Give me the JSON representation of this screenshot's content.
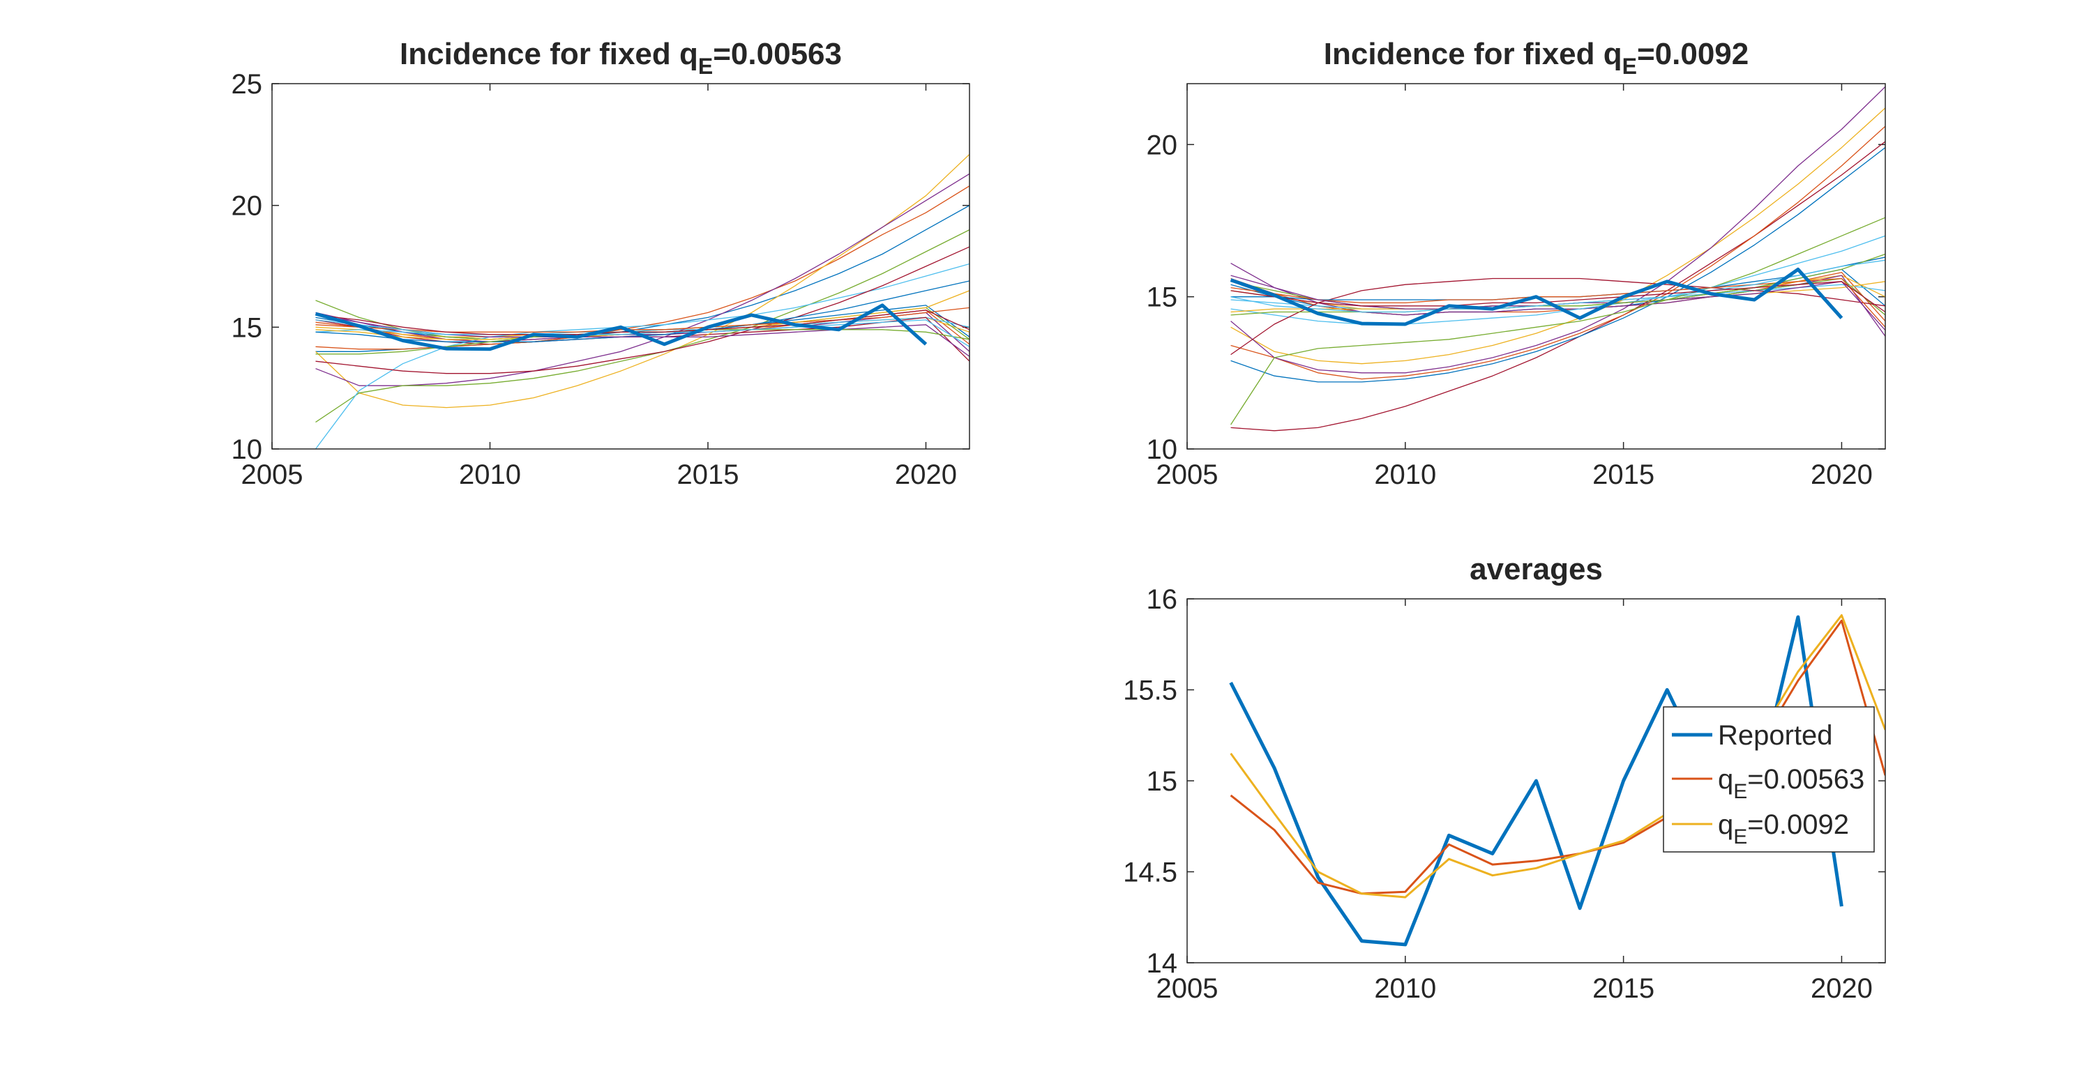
{
  "colors": {
    "reported": "#0072BD",
    "qe1": "#D95319",
    "qe2": "#EDB120",
    "axis": "#262626",
    "palette": [
      "#0072BD",
      "#D95319",
      "#EDB120",
      "#7E2F8E",
      "#77AC30",
      "#4DBEEE",
      "#A2142F"
    ]
  },
  "chart_data": [
    {
      "type": "line",
      "title_prefix": "Incidence for fixed q",
      "title_sub": "E",
      "title_suffix": "=0.00563",
      "xlim": [
        2005,
        2021
      ],
      "ylim": [
        10,
        25
      ],
      "xticks": [
        "2005",
        "2010",
        "2015",
        "2020"
      ],
      "yticks": [
        "10",
        "15",
        "20",
        "25"
      ],
      "x": [
        2006,
        2007,
        2008,
        2009,
        2010,
        2011,
        2012,
        2013,
        2014,
        2015,
        2016,
        2017,
        2018,
        2019,
        2020,
        2021
      ],
      "reported": {
        "name": "Reported",
        "x": [
          2006,
          2007,
          2008,
          2009,
          2010,
          2011,
          2012,
          2013,
          2014,
          2015,
          2016,
          2017,
          2018,
          2019,
          2020
        ],
        "values": [
          15.55,
          15.05,
          14.45,
          14.12,
          14.1,
          14.7,
          14.6,
          15.0,
          14.3,
          15.0,
          15.5,
          15.1,
          14.9,
          15.9,
          14.3
        ]
      },
      "series": [
        {
          "values": [
            15.4,
            15.1,
            14.8,
            14.6,
            14.5,
            14.6,
            14.6,
            14.7,
            14.8,
            14.9,
            15.1,
            15.3,
            15.5,
            15.7,
            15.9,
            14.6
          ]
        },
        {
          "values": [
            15.2,
            15.0,
            14.7,
            14.5,
            14.4,
            14.5,
            14.6,
            14.6,
            14.7,
            14.8,
            14.9,
            15.1,
            15.3,
            15.5,
            15.7,
            14.3
          ]
        },
        {
          "values": [
            15.0,
            14.9,
            14.7,
            14.6,
            14.6,
            14.7,
            14.7,
            14.8,
            14.8,
            14.9,
            15.0,
            15.1,
            15.2,
            15.3,
            15.4,
            14.8
          ]
        },
        {
          "values": [
            15.6,
            15.2,
            14.8,
            14.5,
            14.4,
            14.5,
            14.6,
            14.7,
            14.7,
            14.8,
            14.9,
            15.0,
            15.2,
            15.4,
            15.6,
            14.0
          ]
        },
        {
          "values": [
            16.1,
            15.4,
            14.9,
            14.6,
            14.5,
            14.6,
            14.7,
            14.8,
            14.9,
            15.0,
            15.1,
            15.2,
            15.4,
            15.6,
            15.8,
            14.5
          ]
        },
        {
          "values": [
            14.8,
            14.9,
            14.8,
            14.7,
            14.7,
            14.7,
            14.8,
            14.8,
            14.9,
            14.9,
            15.0,
            15.1,
            15.2,
            15.3,
            15.4,
            15.0
          ]
        },
        {
          "values": [
            15.3,
            15.0,
            14.6,
            14.4,
            14.3,
            14.4,
            14.5,
            14.6,
            14.6,
            14.7,
            14.8,
            14.9,
            15.0,
            15.2,
            15.4,
            13.6
          ]
        },
        {
          "values": [
            14.0,
            14.0,
            14.1,
            14.2,
            14.3,
            14.4,
            14.6,
            14.8,
            15.1,
            15.4,
            15.9,
            16.5,
            17.2,
            18.0,
            19.0,
            20.0
          ]
        },
        {
          "values": [
            14.2,
            14.1,
            14.1,
            14.2,
            14.3,
            14.4,
            14.6,
            14.9,
            15.2,
            15.6,
            16.2,
            16.9,
            17.8,
            18.8,
            19.7,
            20.8
          ]
        },
        {
          "values": [
            14.0,
            12.3,
            11.8,
            11.7,
            11.8,
            12.1,
            12.6,
            13.2,
            13.9,
            14.7,
            15.6,
            16.7,
            17.9,
            19.1,
            20.4,
            22.1
          ]
        },
        {
          "values": [
            13.3,
            12.6,
            12.6,
            12.7,
            12.9,
            13.2,
            13.6,
            14.0,
            14.6,
            15.3,
            16.1,
            17.0,
            18.0,
            19.1,
            20.2,
            21.3
          ]
        },
        {
          "values": [
            11.1,
            12.3,
            12.6,
            12.6,
            12.7,
            12.9,
            13.2,
            13.6,
            14.0,
            14.5,
            15.0,
            15.7,
            16.4,
            17.2,
            18.1,
            19.0
          ]
        },
        {
          "values": [
            10.0,
            12.4,
            13.5,
            14.2,
            14.6,
            14.8,
            14.9,
            15.0,
            15.1,
            15.3,
            15.5,
            15.8,
            16.2,
            16.6,
            17.1,
            17.6
          ]
        },
        {
          "values": [
            13.6,
            13.4,
            13.2,
            13.1,
            13.1,
            13.2,
            13.4,
            13.7,
            14.0,
            14.4,
            14.9,
            15.4,
            16.0,
            16.7,
            17.5,
            18.3
          ]
        },
        {
          "values": [
            14.8,
            14.7,
            14.5,
            14.4,
            14.4,
            14.4,
            14.5,
            14.6,
            14.7,
            14.9,
            15.1,
            15.4,
            15.7,
            16.1,
            16.5,
            16.9
          ]
        },
        {
          "values": [
            15.1,
            15.0,
            14.9,
            14.8,
            14.8,
            14.8,
            14.8,
            14.9,
            14.9,
            15.0,
            15.1,
            15.2,
            15.3,
            15.4,
            15.6,
            15.8
          ]
        },
        {
          "values": [
            14.9,
            14.8,
            14.6,
            14.5,
            14.5,
            14.6,
            14.6,
            14.7,
            14.8,
            14.9,
            15.0,
            15.2,
            15.4,
            15.6,
            15.8,
            16.5
          ]
        },
        {
          "values": [
            15.5,
            15.2,
            14.9,
            14.7,
            14.6,
            14.6,
            14.6,
            14.6,
            14.6,
            14.6,
            14.7,
            14.8,
            14.9,
            15.0,
            15.1,
            13.8
          ]
        },
        {
          "values": [
            13.9,
            13.9,
            14.0,
            14.2,
            14.4,
            14.6,
            14.7,
            14.8,
            14.8,
            14.9,
            14.9,
            14.9,
            14.9,
            14.9,
            14.8,
            14.5
          ]
        },
        {
          "values": [
            15.3,
            15.1,
            14.9,
            14.7,
            14.7,
            14.7,
            14.7,
            14.7,
            14.8,
            14.8,
            14.9,
            15.0,
            15.1,
            15.2,
            15.3,
            14.2
          ]
        },
        {
          "values": [
            15.5,
            15.3,
            15.0,
            14.8,
            14.7,
            14.7,
            14.7,
            14.8,
            14.8,
            14.9,
            15.0,
            15.1,
            15.3,
            15.5,
            15.7,
            14.9
          ]
        }
      ]
    },
    {
      "type": "line",
      "title_prefix": "Incidence for fixed q",
      "title_sub": "E",
      "title_suffix": "=0.0092",
      "xlim": [
        2005,
        2021
      ],
      "ylim": [
        10,
        22
      ],
      "xticks": [
        "2005",
        "2010",
        "2015",
        "2020"
      ],
      "yticks": [
        "10",
        "15",
        "20"
      ],
      "x": [
        2006,
        2007,
        2008,
        2009,
        2010,
        2011,
        2012,
        2013,
        2014,
        2015,
        2016,
        2017,
        2018,
        2019,
        2020,
        2021
      ],
      "reported": {
        "name": "Reported",
        "x": [
          2006,
          2007,
          2008,
          2009,
          2010,
          2011,
          2012,
          2013,
          2014,
          2015,
          2016,
          2017,
          2018,
          2019,
          2020
        ],
        "values": [
          15.55,
          15.05,
          14.45,
          14.12,
          14.1,
          14.7,
          14.6,
          15.0,
          14.3,
          15.0,
          15.5,
          15.1,
          14.9,
          15.9,
          14.3
        ]
      },
      "series": [
        {
          "values": [
            15.4,
            15.0,
            14.7,
            14.5,
            14.4,
            14.5,
            14.5,
            14.6,
            14.6,
            14.7,
            14.9,
            15.1,
            15.3,
            15.6,
            15.9,
            14.7
          ]
        },
        {
          "values": [
            15.6,
            15.1,
            14.7,
            14.5,
            14.4,
            14.5,
            14.5,
            14.5,
            14.6,
            14.7,
            14.8,
            15.0,
            15.2,
            15.5,
            15.8,
            14.2
          ]
        },
        {
          "values": [
            15.2,
            15.0,
            14.8,
            14.6,
            14.6,
            14.6,
            14.7,
            14.7,
            14.8,
            14.9,
            15.0,
            15.1,
            15.3,
            15.5,
            15.7,
            15.0
          ]
        },
        {
          "values": [
            16.1,
            15.3,
            14.8,
            14.5,
            14.4,
            14.5,
            14.5,
            14.6,
            14.6,
            14.7,
            14.8,
            15.0,
            15.2,
            15.4,
            15.7,
            13.7
          ]
        },
        {
          "values": [
            15.5,
            15.2,
            14.9,
            14.7,
            14.6,
            14.6,
            14.6,
            14.7,
            14.7,
            14.8,
            14.9,
            15.0,
            15.2,
            15.4,
            15.6,
            14.4
          ]
        },
        {
          "values": [
            14.9,
            14.8,
            14.7,
            14.6,
            14.6,
            14.6,
            14.7,
            14.7,
            14.8,
            14.9,
            15.0,
            15.1,
            15.2,
            15.3,
            15.4,
            15.2
          ]
        },
        {
          "values": [
            10.7,
            10.6,
            10.7,
            11.0,
            11.4,
            11.9,
            12.4,
            13.0,
            13.7,
            14.4,
            15.2,
            16.1,
            17.0,
            18.0,
            19.0,
            20.1
          ]
        },
        {
          "values": [
            12.9,
            12.4,
            12.2,
            12.2,
            12.3,
            12.5,
            12.8,
            13.2,
            13.7,
            14.3,
            15.0,
            15.8,
            16.7,
            17.7,
            18.8,
            19.9
          ]
        },
        {
          "values": [
            13.4,
            13.0,
            12.5,
            12.3,
            12.4,
            12.6,
            12.9,
            13.3,
            13.8,
            14.4,
            15.1,
            16.0,
            17.0,
            18.1,
            19.3,
            20.6
          ]
        },
        {
          "values": [
            14.0,
            13.2,
            12.9,
            12.8,
            12.9,
            13.1,
            13.4,
            13.8,
            14.3,
            14.9,
            15.7,
            16.6,
            17.6,
            18.7,
            19.9,
            21.2
          ]
        },
        {
          "values": [
            14.2,
            13.0,
            12.6,
            12.5,
            12.5,
            12.7,
            13.0,
            13.4,
            13.9,
            14.6,
            15.5,
            16.6,
            17.9,
            19.3,
            20.5,
            21.9
          ]
        },
        {
          "values": [
            10.8,
            13.0,
            13.3,
            13.4,
            13.5,
            13.6,
            13.8,
            14.0,
            14.2,
            14.5,
            14.9,
            15.3,
            15.8,
            16.4,
            17.0,
            17.6
          ]
        },
        {
          "values": [
            14.6,
            14.4,
            14.2,
            14.1,
            14.1,
            14.2,
            14.3,
            14.4,
            14.6,
            14.8,
            15.0,
            15.3,
            15.7,
            16.1,
            16.5,
            17.0
          ]
        },
        {
          "values": [
            13.1,
            14.1,
            14.8,
            15.2,
            15.4,
            15.5,
            15.6,
            15.6,
            15.6,
            15.5,
            15.4,
            15.3,
            15.2,
            15.1,
            14.9,
            14.7
          ]
        },
        {
          "values": [
            15.0,
            15.0,
            14.9,
            14.9,
            14.9,
            14.9,
            14.9,
            15.0,
            15.0,
            15.1,
            15.2,
            15.3,
            15.5,
            15.7,
            16.0,
            16.3
          ]
        },
        {
          "values": [
            15.3,
            15.1,
            14.9,
            14.8,
            14.8,
            14.9,
            14.9,
            15.0,
            15.0,
            15.1,
            15.2,
            15.3,
            15.4,
            15.5,
            15.6,
            14.0
          ]
        },
        {
          "values": [
            14.5,
            14.6,
            14.6,
            14.6,
            14.6,
            14.6,
            14.7,
            14.7,
            14.8,
            14.8,
            14.9,
            15.0,
            15.1,
            15.2,
            15.3,
            15.5
          ]
        },
        {
          "values": [
            15.7,
            15.3,
            14.9,
            14.7,
            14.6,
            14.6,
            14.7,
            14.7,
            14.8,
            14.8,
            14.9,
            15.0,
            15.1,
            15.3,
            15.5,
            13.9
          ]
        },
        {
          "values": [
            14.4,
            14.5,
            14.5,
            14.5,
            14.5,
            14.6,
            14.6,
            14.7,
            14.7,
            14.8,
            14.9,
            15.1,
            15.3,
            15.6,
            15.9,
            16.4
          ]
        },
        {
          "values": [
            15.0,
            14.7,
            14.6,
            14.5,
            14.5,
            14.6,
            14.6,
            14.7,
            14.8,
            14.9,
            15.0,
            15.2,
            15.4,
            15.7,
            16.0,
            16.2
          ]
        },
        {
          "values": [
            15.2,
            15.0,
            14.8,
            14.7,
            14.7,
            14.7,
            14.8,
            14.8,
            14.9,
            15.0,
            15.1,
            15.2,
            15.3,
            15.4,
            15.5,
            14.5
          ]
        }
      ]
    },
    {
      "type": "line",
      "title": "averages",
      "xlim": [
        2005,
        2021
      ],
      "ylim": [
        14,
        16
      ],
      "xticks": [
        "2005",
        "2010",
        "2015",
        "2020"
      ],
      "yticks": [
        "14",
        "14.5",
        "15",
        "15.5",
        "16"
      ],
      "legend_position": "center-right",
      "series": [
        {
          "name": "Reported",
          "legend_label": "Reported",
          "x": [
            2006,
            2007,
            2008,
            2009,
            2010,
            2011,
            2012,
            2013,
            2014,
            2015,
            2016,
            2017,
            2018,
            2019,
            2020
          ],
          "values": [
            15.54,
            15.07,
            14.47,
            14.12,
            14.1,
            14.7,
            14.6,
            15.0,
            14.3,
            15.0,
            15.5,
            15.0,
            14.9,
            15.9,
            14.31
          ]
        },
        {
          "name": "q_E=0.00563",
          "legend_label": "q",
          "legend_sub": "E",
          "legend_suffix": "=0.00563",
          "x": [
            2006,
            2007,
            2008,
            2009,
            2010,
            2011,
            2012,
            2013,
            2014,
            2015,
            2016,
            2017,
            2018,
            2019,
            2020,
            2021
          ],
          "values": [
            14.92,
            14.73,
            14.44,
            14.38,
            14.39,
            14.65,
            14.54,
            14.56,
            14.6,
            14.66,
            14.8,
            14.95,
            15.15,
            15.55,
            15.88,
            15.03
          ]
        },
        {
          "name": "q_E=0.0092",
          "legend_label": "q",
          "legend_sub": "E",
          "legend_suffix": "=0.0092",
          "x": [
            2006,
            2007,
            2008,
            2009,
            2010,
            2011,
            2012,
            2013,
            2014,
            2015,
            2016,
            2017,
            2018,
            2019,
            2020,
            2021
          ],
          "values": [
            15.15,
            14.82,
            14.5,
            14.38,
            14.36,
            14.57,
            14.48,
            14.52,
            14.6,
            14.67,
            14.82,
            14.97,
            15.2,
            15.6,
            15.91,
            15.28
          ]
        }
      ]
    }
  ]
}
